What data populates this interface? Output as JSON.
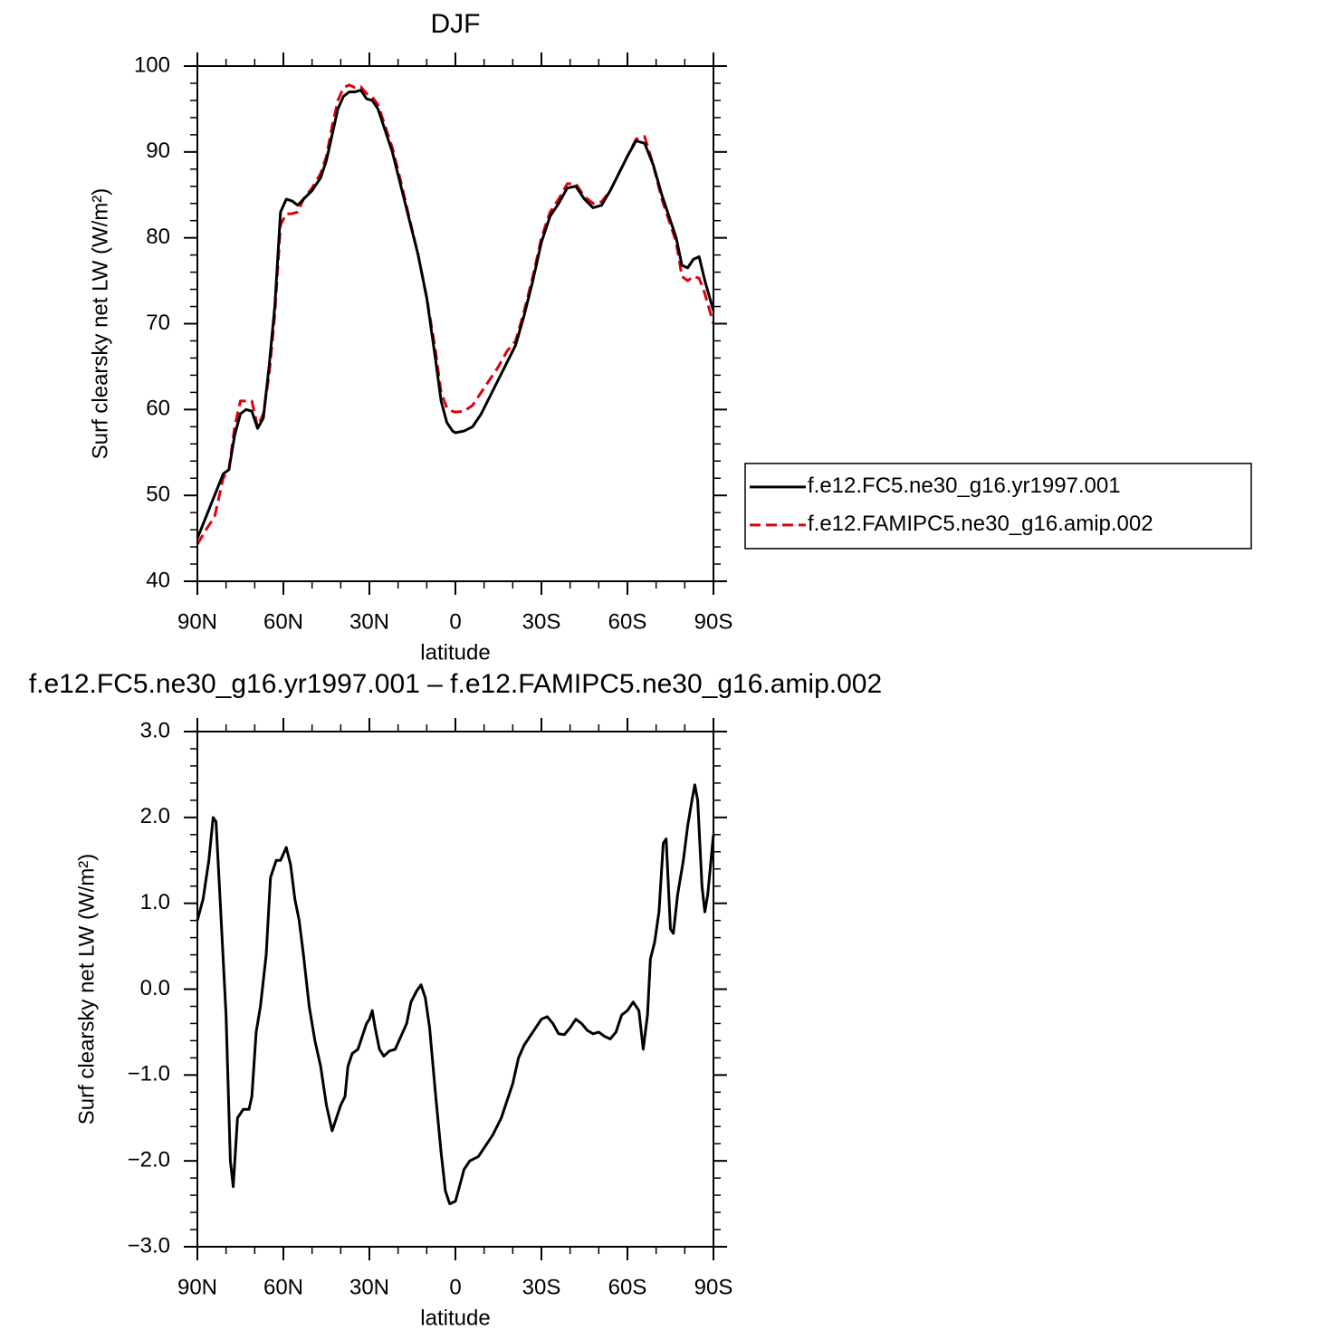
{
  "chart_data": [
    {
      "type": "line",
      "title": "DJF",
      "xlabel": "latitude",
      "ylabel": "Surf clearsky net LW (W/m²)",
      "xlim": [
        90,
        -90
      ],
      "xticks": [
        {
          "value": 90,
          "label": "90N"
        },
        {
          "value": 60,
          "label": "60N"
        },
        {
          "value": 30,
          "label": "30N"
        },
        0,
        {
          "value": -30,
          "label": "30S"
        },
        {
          "value": -60,
          "label": "60S"
        },
        {
          "value": -90,
          "label": "90S"
        }
      ],
      "ylim": [
        40,
        100
      ],
      "yticks": [
        40,
        50,
        60,
        70,
        80,
        90,
        100
      ],
      "legend": "right",
      "x": [
        90,
        87,
        84,
        81,
        79,
        77,
        75,
        73,
        71,
        69,
        67,
        65,
        63,
        61,
        59,
        57,
        55,
        53,
        50,
        47,
        45,
        43,
        41,
        39,
        37,
        35,
        33,
        31,
        29,
        27,
        25,
        22,
        19,
        16,
        13,
        10,
        7,
        5,
        3,
        1,
        0,
        -3,
        -6,
        -9,
        -12,
        -15,
        -18,
        -21,
        -24,
        -27,
        -30,
        -33,
        -36,
        -39,
        -42,
        -45,
        -48,
        -51,
        -54,
        -57,
        -60,
        -63,
        -66,
        -69,
        -72,
        -75,
        -77,
        -79,
        -81,
        -83,
        -85,
        -87,
        -90
      ],
      "series": [
        {
          "name": "f.e12.FAMIPC5.ne30_g16.amip.002",
          "color": "#e0000f",
          "dash": true,
          "values": [
            44.3,
            46,
            47.5,
            52,
            53,
            58,
            61,
            61,
            61,
            58,
            59.5,
            64,
            71,
            81.5,
            82.8,
            82.8,
            83,
            84.5,
            85.8,
            87.5,
            89.5,
            93,
            96,
            97.5,
            97.8,
            97.5,
            97.6,
            96.8,
            96.4,
            95.5,
            93.5,
            90.5,
            86.5,
            82.2,
            78,
            73,
            67,
            62,
            60.2,
            59.8,
            59.7,
            59.8,
            60.5,
            62,
            63.5,
            65,
            66.8,
            68,
            71.5,
            75.5,
            80,
            83,
            84.5,
            86.3,
            86.3,
            84.8,
            84,
            84.2,
            85.5,
            87.5,
            89.5,
            91.5,
            91.8,
            88.5,
            84.5,
            81.5,
            79.5,
            75.5,
            75,
            75.5,
            75.3,
            73.5,
            70
          ]
        },
        {
          "name": "f.e12.FC5.ne30_g16.yr1997.001",
          "color": "#000000",
          "dash": false,
          "values": [
            45,
            47.5,
            50,
            52.5,
            53,
            57,
            59.5,
            60,
            59.8,
            57.8,
            59,
            65,
            72,
            83,
            84.5,
            84.3,
            83.8,
            84.5,
            85.5,
            87,
            89,
            92,
            95,
            96.5,
            97,
            97,
            97.2,
            96.2,
            96,
            95,
            93,
            90,
            86,
            82,
            78,
            73,
            66,
            61,
            58.5,
            57.5,
            57.3,
            57.5,
            58,
            59.5,
            61.5,
            63.5,
            65.5,
            67.5,
            71,
            75,
            79.5,
            82.5,
            84,
            85.8,
            86,
            84.5,
            83.5,
            83.8,
            85.5,
            87.5,
            89.5,
            91.3,
            91,
            88.5,
            85,
            82,
            80,
            76.8,
            76.5,
            77.5,
            77.8,
            75,
            71.5
          ]
        }
      ]
    },
    {
      "type": "line",
      "title": "f.e12.FC5.ne30_g16.yr1997.001 – f.e12.FAMIPC5.ne30_g16.amip.002",
      "xlabel": "latitude",
      "ylabel": "Surf clearsky net LW (W/m²)",
      "xlim": [
        90,
        -90
      ],
      "xticks": [
        {
          "value": 90,
          "label": "90N"
        },
        {
          "value": 60,
          "label": "60N"
        },
        {
          "value": 30,
          "label": "30N"
        },
        0,
        {
          "value": -30,
          "label": "30S"
        },
        {
          "value": -60,
          "label": "60S"
        },
        {
          "value": -90,
          "label": "90S"
        }
      ],
      "ylim": [
        -3,
        3
      ],
      "yticks": [
        {
          "value": -3,
          "label": "−3.0"
        },
        {
          "value": -2,
          "label": "−2.0"
        },
        {
          "value": -1,
          "label": "−1.0"
        },
        {
          "value": 0,
          "label": "0.0"
        },
        {
          "value": 1,
          "label": "1.0"
        },
        {
          "value": 2,
          "label": "2.0"
        },
        {
          "value": 3,
          "label": "3.0"
        }
      ],
      "x": [
        90,
        88,
        86,
        84.5,
        83.5,
        82,
        80,
        78.5,
        77.5,
        76,
        74,
        72,
        71,
        69.5,
        68,
        66,
        64.5,
        62.5,
        61,
        59,
        57.5,
        56,
        54.5,
        53,
        51,
        49,
        47,
        45,
        43,
        41.5,
        40,
        38.5,
        37.5,
        36,
        34,
        32.5,
        31,
        30,
        29,
        28,
        26.5,
        25,
        23,
        21,
        19,
        17,
        15.5,
        13.5,
        12,
        10.5,
        9,
        7,
        5,
        3.5,
        2,
        0,
        -1,
        -3,
        -5,
        -8,
        -10,
        -13,
        -16,
        -18,
        -20,
        -22,
        -24,
        -27,
        -30,
        -32,
        -34,
        -36,
        -38,
        -40,
        -42,
        -44,
        -46,
        -48,
        -50,
        -52,
        -54,
        -56,
        -58,
        -60,
        -62,
        -64,
        -65.5,
        -67,
        -68,
        -69.5,
        -71,
        -72.5,
        -73.5,
        -75,
        -76,
        -77.5,
        -79.5,
        -81,
        -82.5,
        -83.5,
        -84.5,
        -86,
        -87,
        -88,
        -90
      ],
      "series": [
        {
          "color": "#000000",
          "dash": false,
          "values": [
            0.8,
            1.05,
            1.5,
            2.0,
            1.95,
            1.0,
            -0.3,
            -2.0,
            -2.3,
            -1.5,
            -1.4,
            -1.4,
            -1.25,
            -0.5,
            -0.2,
            0.4,
            1.3,
            1.5,
            1.5,
            1.65,
            1.45,
            1.05,
            0.8,
            0.4,
            -0.2,
            -0.6,
            -0.9,
            -1.35,
            -1.65,
            -1.5,
            -1.35,
            -1.25,
            -0.9,
            -0.75,
            -0.7,
            -0.55,
            -0.4,
            -0.35,
            -0.25,
            -0.45,
            -0.7,
            -0.78,
            -0.72,
            -0.7,
            -0.55,
            -0.4,
            -0.15,
            -0.02,
            0.05,
            -0.1,
            -0.45,
            -1.2,
            -1.9,
            -2.35,
            -2.5,
            -2.47,
            -2.35,
            -2.1,
            -2.0,
            -1.95,
            -1.85,
            -1.7,
            -1.5,
            -1.3,
            -1.1,
            -0.8,
            -0.65,
            -0.5,
            -0.35,
            -0.32,
            -0.4,
            -0.52,
            -0.53,
            -0.45,
            -0.35,
            -0.4,
            -0.48,
            -0.52,
            -0.5,
            -0.55,
            -0.58,
            -0.5,
            -0.3,
            -0.25,
            -0.15,
            -0.25,
            -0.7,
            -0.3,
            0.35,
            0.55,
            0.9,
            1.7,
            1.75,
            0.7,
            0.65,
            1.1,
            1.5,
            1.9,
            2.2,
            2.38,
            2.2,
            1.2,
            0.9,
            1.1,
            1.8
          ]
        }
      ]
    }
  ]
}
